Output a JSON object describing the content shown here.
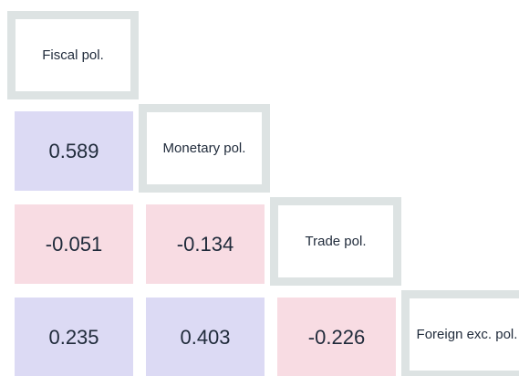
{
  "labels": [
    "Fiscal pol.",
    "Monetary pol.",
    "Trade pol.",
    "Foreign exc. pol."
  ],
  "matrix": [
    [
      null,
      null,
      null,
      null
    ],
    [
      0.589,
      null,
      null,
      null
    ],
    [
      -0.051,
      -0.134,
      null,
      null
    ],
    [
      0.235,
      0.403,
      -0.226,
      null
    ]
  ],
  "positive_color": "#dcdaf4",
  "negative_color": "#f8dce3"
}
